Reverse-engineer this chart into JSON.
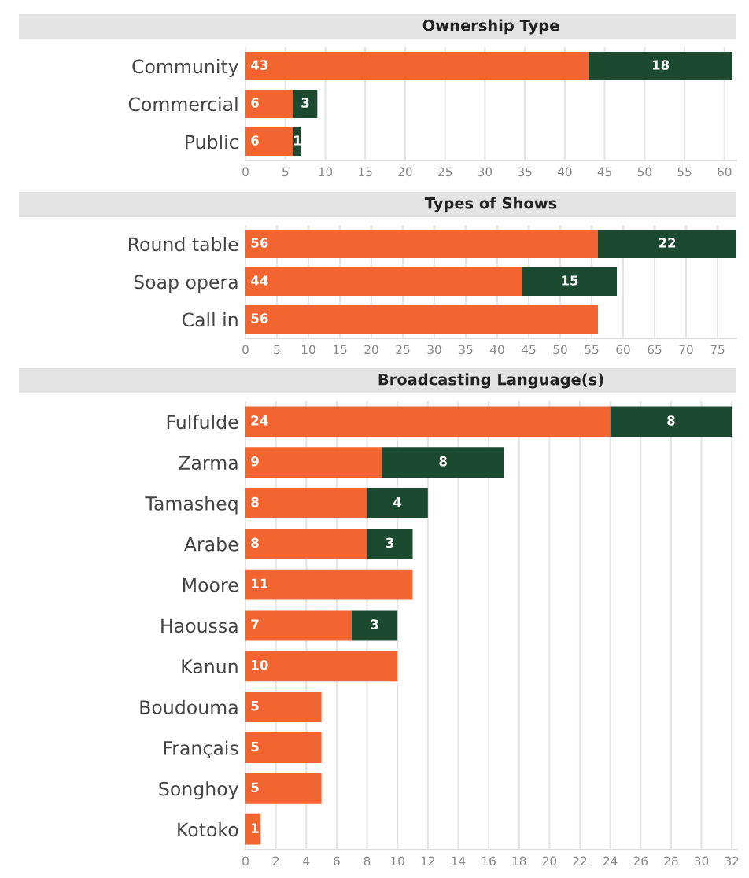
{
  "chart_data": [
    {
      "type": "bar",
      "orientation": "horizontal",
      "stacked": true,
      "title": "Ownership Type",
      "categories": [
        "Community",
        "Commercial",
        "Public"
      ],
      "series": [
        {
          "color": "#f26430",
          "values": [
            43,
            6,
            6
          ]
        },
        {
          "color": "#1c4a30",
          "values": [
            18,
            3,
            1
          ]
        }
      ],
      "xlim": [
        0,
        61.5
      ],
      "xticks": [
        0,
        5,
        10,
        15,
        20,
        25,
        30,
        35,
        40,
        45,
        50,
        55,
        60
      ],
      "grid": "x",
      "data_labels": true
    },
    {
      "type": "bar",
      "orientation": "horizontal",
      "stacked": true,
      "title": "Types of Shows",
      "categories": [
        "Round table",
        "Soap opera",
        "Call in"
      ],
      "series": [
        {
          "color": "#f26430",
          "values": [
            56,
            44,
            56
          ]
        },
        {
          "color": "#1c4a30",
          "values": [
            22,
            15,
            null
          ]
        }
      ],
      "xlim": [
        0,
        78
      ],
      "xticks": [
        0,
        5,
        10,
        15,
        20,
        25,
        30,
        35,
        40,
        45,
        50,
        55,
        60,
        65,
        70,
        75
      ],
      "grid": "x",
      "data_labels": true
    },
    {
      "type": "bar",
      "orientation": "horizontal",
      "stacked": true,
      "title": "Broadcasting Language(s)",
      "categories": [
        "Fulfulde",
        "Zarma",
        "Tamasheq",
        "Arabe",
        "Moore",
        "Haoussa",
        "Kanun",
        "Boudouma",
        "Français",
        "Songhoy",
        "Kotoko"
      ],
      "series": [
        {
          "color": "#f26430",
          "values": [
            24,
            9,
            8,
            8,
            11,
            7,
            10,
            5,
            5,
            5,
            1
          ]
        },
        {
          "color": "#1c4a30",
          "values": [
            8,
            8,
            4,
            3,
            null,
            3,
            null,
            null,
            null,
            null,
            null
          ]
        }
      ],
      "xlim": [
        0,
        32.3
      ],
      "xticks": [
        0,
        2,
        4,
        6,
        8,
        10,
        12,
        14,
        16,
        18,
        20,
        22,
        24,
        26,
        28,
        30,
        32
      ],
      "grid": "x",
      "data_labels": true
    }
  ]
}
